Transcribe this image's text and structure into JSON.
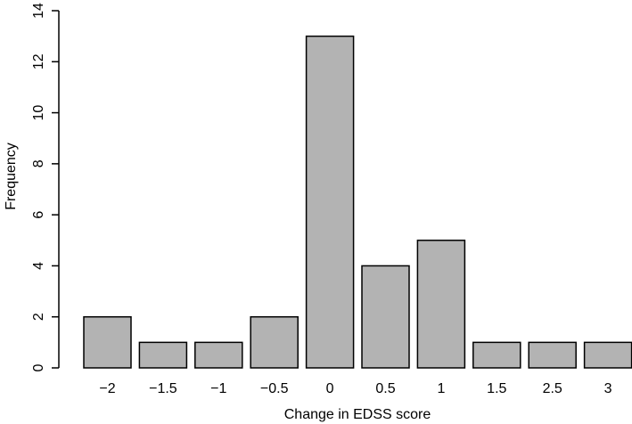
{
  "chart_data": {
    "type": "bar",
    "categories": [
      "−2",
      "−1.5",
      "−1",
      "−0.5",
      "0",
      "0.5",
      "1",
      "1.5",
      "2.5",
      "3"
    ],
    "values": [
      2,
      1,
      1,
      2,
      13,
      4,
      5,
      1,
      1,
      1
    ],
    "xlabel": "Change in EDSS score",
    "ylabel": "Frequency",
    "ylim": [
      0,
      14
    ],
    "yticks": [
      "0",
      "2",
      "4",
      "6",
      "8",
      "10",
      "12",
      "14"
    ],
    "grid": false,
    "colors": {
      "bar_fill": "#b3b3b3",
      "bar_stroke": "#000000"
    }
  }
}
